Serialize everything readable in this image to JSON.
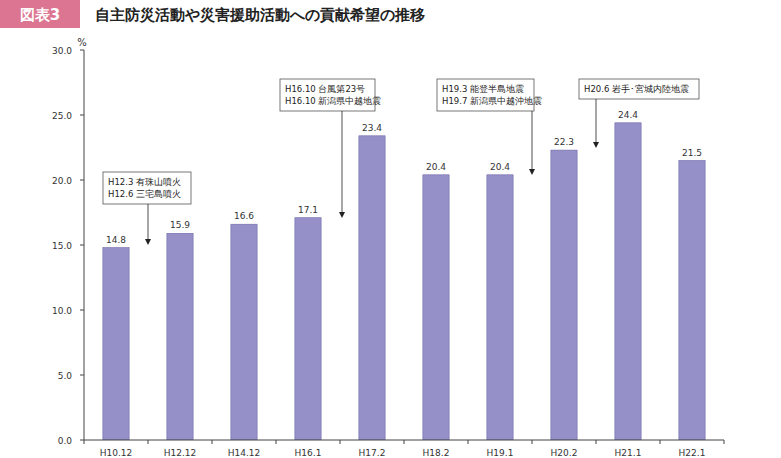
{
  "chart_data": {
    "type": "bar",
    "figure_label": "図表3",
    "title": "自主防災活動や災害援助活動への貢献希望の推移",
    "y_label": "%",
    "categories": [
      "H10.12",
      "H12.12",
      "H14.12",
      "H16.1",
      "H17.2",
      "H18.2",
      "H19.1",
      "H20.2",
      "H21.1",
      "H22.1"
    ],
    "values": [
      14.8,
      15.9,
      16.6,
      17.1,
      23.4,
      20.4,
      20.4,
      22.3,
      24.4,
      21.5
    ],
    "color": "#9590c8",
    "ylim": [
      0,
      30
    ],
    "yticks": [
      {
        "value": 0,
        "label": "0.0"
      },
      {
        "value": 5,
        "label": "5.0"
      },
      {
        "value": 10,
        "label": "10.0"
      },
      {
        "value": 15,
        "label": "15.0"
      },
      {
        "value": 20,
        "label": "20.0"
      },
      {
        "value": 25,
        "label": "25.0"
      },
      {
        "value": 30,
        "label": "30.0"
      }
    ],
    "grid": false,
    "data_labels": true,
    "annotations": [
      {
        "lines": [
          "H12.3 有珠山噴火",
          "H12.6 三宅島噴火"
        ]
      },
      {
        "lines": [
          "H16.10 台風第23号",
          "H16.10 新潟県中越地震"
        ]
      },
      {
        "lines": [
          "H19.3 能登半島地震",
          "H19.7 新潟県中越沖地震"
        ]
      },
      {
        "lines": [
          "H20.6 岩手･宮城内陸地震"
        ]
      }
    ]
  }
}
